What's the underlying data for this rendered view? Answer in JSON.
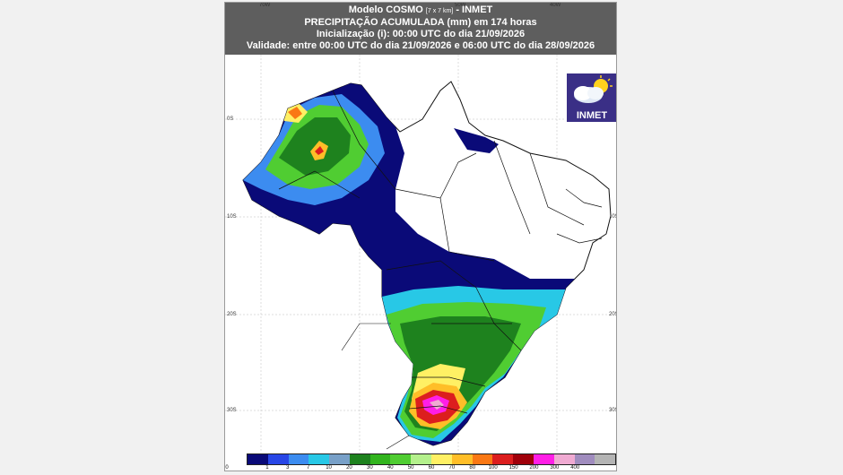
{
  "header": {
    "model": "Modelo COSMO",
    "model_res": "[7 x 7 km]",
    "model_org": "- INMET",
    "product": "PRECIPITAÇÃO ACUMULADA (mm) em 174 horas",
    "init": "Inicialização (i): 00:00 UTC do dia 21/09/2026",
    "validity": "Validade: entre 00:00 UTC do dia 21/09/2026 e 06:00 UTC do dia 28/09/2026"
  },
  "axes": {
    "lon_labels": [
      "70W",
      "50W",
      "40W"
    ],
    "lat_labels": [
      "0S",
      "10S",
      "20S",
      "30S"
    ]
  },
  "logo": {
    "text": "INMET"
  },
  "legend": {
    "ticks": [
      "0",
      "1",
      "3",
      "7",
      "10",
      "20",
      "30",
      "40",
      "50",
      "60",
      "70",
      "80",
      "100",
      "150",
      "200",
      "300",
      "400"
    ],
    "colors": [
      "#0a0a78",
      "#2846e6",
      "#3c8cf0",
      "#28c8e6",
      "#78a0c8",
      "#1e821e",
      "#32b41e",
      "#50cd32",
      "#b4f08c",
      "#fff064",
      "#ffbe28",
      "#fa7814",
      "#dc1e1e",
      "#a0000a",
      "#ff1ee6",
      "#f0aad2",
      "#a08cbe",
      "#b4b4b4"
    ]
  }
}
